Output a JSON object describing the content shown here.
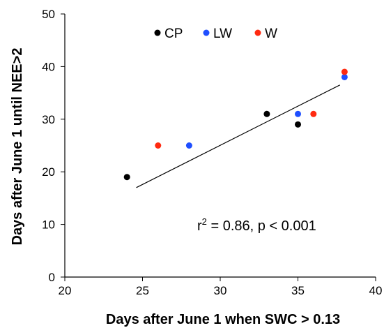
{
  "chart_data": {
    "type": "scatter",
    "title": "",
    "xlabel": "Days after June 1 when SWC > 0.13",
    "ylabel": "Days after June 1 until NEE>2",
    "xlim": [
      20,
      40
    ],
    "ylim": [
      0,
      50
    ],
    "x_ticks": [
      "20",
      "25",
      "30",
      "35",
      "40"
    ],
    "y_ticks": [
      "0",
      "10",
      "20",
      "30",
      "40",
      "50"
    ],
    "grid": false,
    "legend_position": "top",
    "series": [
      {
        "name": "CP",
        "color": "#000000",
        "points": [
          [
            24,
            19
          ],
          [
            33,
            31
          ],
          [
            35,
            29
          ]
        ]
      },
      {
        "name": "LW",
        "color": "#1f4fff",
        "points": [
          [
            28,
            25
          ],
          [
            35,
            31
          ],
          [
            38,
            38
          ]
        ]
      },
      {
        "name": "W",
        "color": "#ff2a10",
        "points": [
          [
            26,
            25
          ],
          [
            36,
            31
          ],
          [
            38,
            39
          ]
        ]
      }
    ],
    "trendline": {
      "from": [
        24.6,
        17
      ],
      "to": [
        37.7,
        36.5
      ]
    },
    "annotation": {
      "prefix": "r",
      "superscript": "2",
      "suffix": " = 0.86, p < 0.001"
    }
  }
}
